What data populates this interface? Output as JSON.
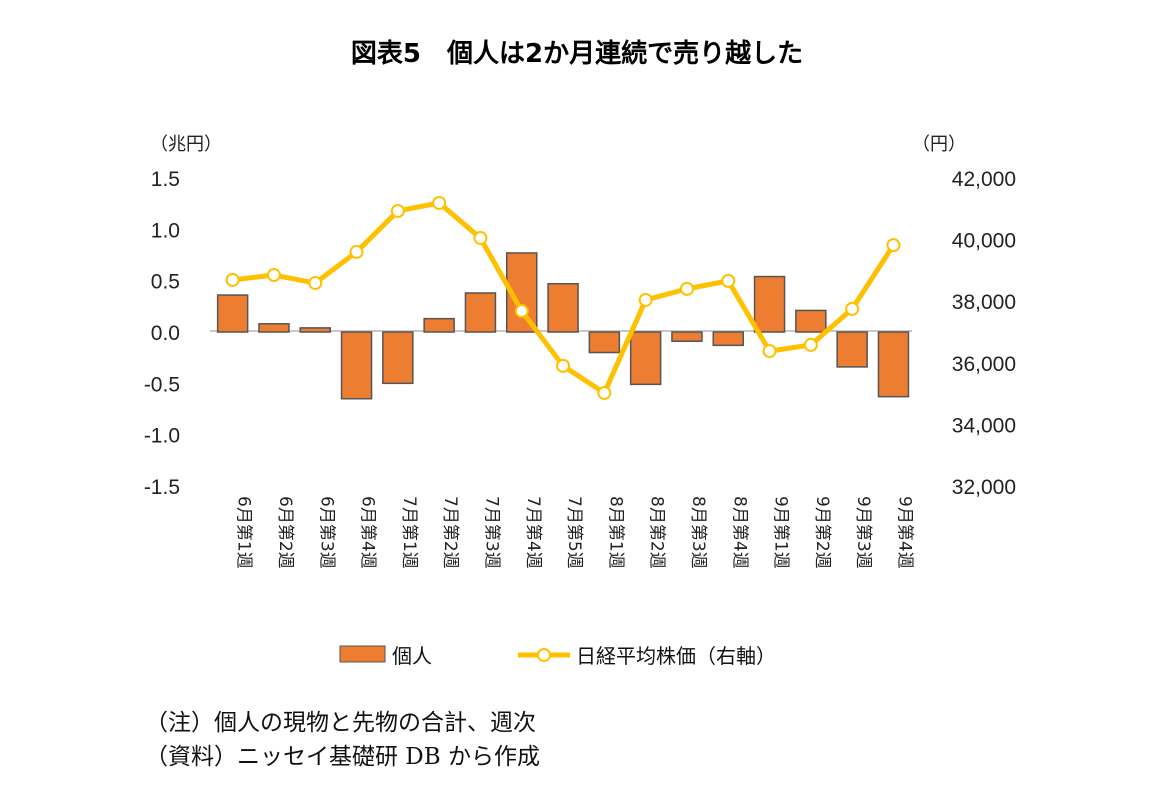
{
  "chart_data": {
    "type": "bar+line",
    "title": "図表5　個人は2か月連続で売り越した",
    "categories": [
      "6月第1週",
      "6月第2週",
      "6月第3週",
      "6月第4週",
      "7月第1週",
      "7月第2週",
      "7月第3週",
      "7月第4週",
      "7月第5週",
      "8月第1週",
      "8月第2週",
      "8月第3週",
      "8月第4週",
      "9月第1週",
      "9月第2週",
      "9月第3週",
      "9月第4週"
    ],
    "left_axis": {
      "unit": "（兆円）",
      "ylim": [
        -1.5,
        1.5
      ],
      "ticks": [
        "1.5",
        "1.0",
        "0.5",
        "0.0",
        "-0.5",
        "-1.0",
        "-1.5"
      ]
    },
    "right_axis": {
      "unit": "（円）",
      "ylim": [
        32000,
        42000
      ],
      "ticks": [
        "42,000",
        "40,000",
        "38,000",
        "36,000",
        "34,000",
        "32,000"
      ]
    },
    "series": [
      {
        "name": "個人",
        "type": "bar",
        "axis": "left",
        "color": "#ED7D31",
        "values": [
          0.36,
          0.08,
          0.04,
          -0.65,
          -0.5,
          0.13,
          0.38,
          0.77,
          0.47,
          -0.2,
          -0.51,
          -0.09,
          -0.13,
          0.54,
          0.21,
          -0.34,
          -0.63
        ]
      },
      {
        "name": "日経平均株価（右軸）",
        "type": "line",
        "axis": "right",
        "color": "#FFC000",
        "values": [
          38690,
          38850,
          38590,
          39600,
          40930,
          41190,
          40050,
          37680,
          35900,
          35020,
          38040,
          38400,
          38660,
          36380,
          36580,
          37750,
          39820
        ]
      }
    ],
    "legend": "bottom"
  },
  "notes": [
    "（注）個人の現物と先物の合計、週次",
    "（資料）ニッセイ基礎研 DB から作成"
  ]
}
